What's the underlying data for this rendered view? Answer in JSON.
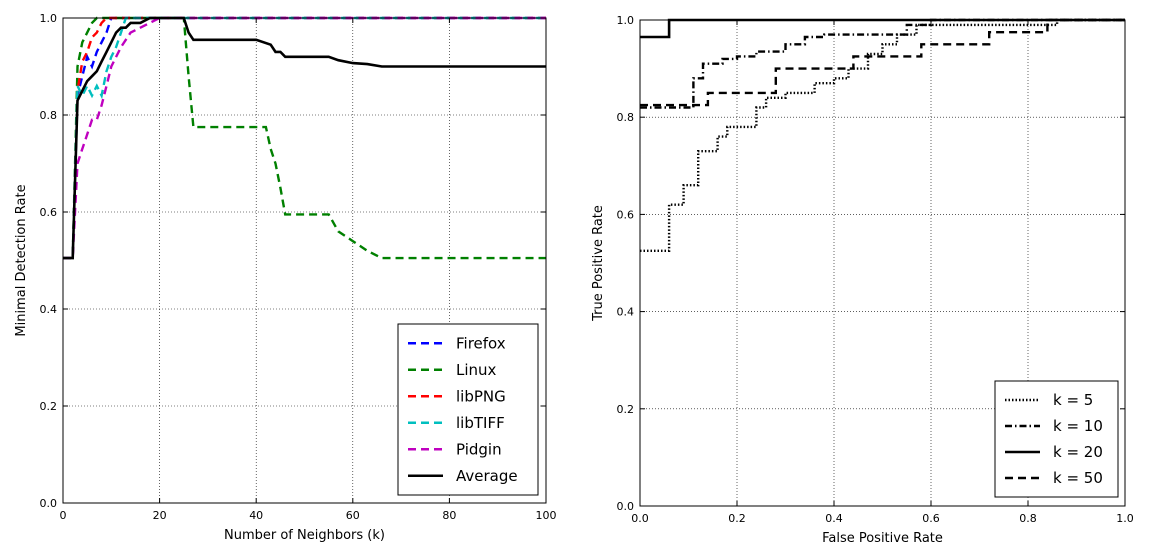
{
  "chart_data": [
    {
      "type": "line",
      "title": "",
      "xlabel": "Number of Neighbors (k)",
      "ylabel": "Minimal Detection Rate",
      "xlim": [
        0,
        100
      ],
      "ylim": [
        0.0,
        1.0
      ],
      "xticks": [
        "0",
        "20",
        "40",
        "60",
        "80",
        "100"
      ],
      "yticks": [
        "0.0",
        "0.2",
        "0.4",
        "0.6",
        "0.8",
        "1.0"
      ],
      "grid": true,
      "legend_position": "bottom-right",
      "series": [
        {
          "name": "Firefox",
          "color": "#0000ff",
          "dash": "dashed",
          "x": [
            0,
            2,
            3,
            4,
            5,
            6,
            7,
            8,
            9,
            10,
            100
          ],
          "y": [
            0.505,
            0.505,
            0.84,
            0.88,
            0.92,
            0.9,
            0.93,
            0.95,
            0.97,
            1.0,
            1.0
          ]
        },
        {
          "name": "Linux",
          "color": "#008000",
          "dash": "dashed",
          "x": [
            0,
            2,
            3,
            4,
            5,
            6,
            7,
            25,
            26,
            27,
            40,
            42,
            43,
            44,
            45,
            46,
            55,
            57,
            60,
            63,
            66,
            100
          ],
          "y": [
            0.505,
            0.505,
            0.9,
            0.95,
            0.97,
            0.99,
            1.0,
            1.0,
            0.88,
            0.775,
            0.775,
            0.775,
            0.73,
            0.7,
            0.65,
            0.595,
            0.595,
            0.56,
            0.54,
            0.52,
            0.505,
            0.505
          ]
        },
        {
          "name": "libPNG",
          "color": "#ff0000",
          "dash": "dashed",
          "x": [
            0,
            2,
            3,
            4,
            5,
            6,
            7,
            8,
            9,
            100
          ],
          "y": [
            0.505,
            0.505,
            0.85,
            0.91,
            0.93,
            0.96,
            0.97,
            0.99,
            1.0,
            1.0
          ]
        },
        {
          "name": "libTIFF",
          "color": "#00bfbf",
          "dash": "dashed",
          "x": [
            0,
            2,
            3,
            4,
            5,
            6,
            7,
            8,
            9,
            10,
            11,
            12,
            13,
            100
          ],
          "y": [
            0.505,
            0.505,
            0.86,
            0.84,
            0.86,
            0.84,
            0.86,
            0.84,
            0.89,
            0.92,
            0.94,
            0.97,
            1.0,
            1.0
          ]
        },
        {
          "name": "Pidgin",
          "color": "#bf00bf",
          "dash": "dashed",
          "x": [
            0,
            2,
            3,
            4,
            5,
            6,
            7,
            8,
            9,
            10,
            12,
            14,
            16,
            18,
            20,
            100
          ],
          "y": [
            0.505,
            0.505,
            0.7,
            0.73,
            0.76,
            0.79,
            0.79,
            0.82,
            0.86,
            0.9,
            0.94,
            0.97,
            0.98,
            0.99,
            1.0,
            1.0
          ]
        },
        {
          "name": "Average",
          "color": "#000000",
          "dash": "solid",
          "x": [
            0,
            2,
            3,
            4,
            5,
            6,
            7,
            8,
            9,
            10,
            11,
            12,
            13,
            14,
            16,
            18,
            20,
            25,
            26,
            27,
            40,
            43,
            44,
            45,
            46,
            55,
            57,
            60,
            63,
            66,
            100
          ],
          "y": [
            0.505,
            0.505,
            0.83,
            0.85,
            0.87,
            0.88,
            0.89,
            0.91,
            0.93,
            0.95,
            0.97,
            0.98,
            0.98,
            0.99,
            0.99,
            1.0,
            1.0,
            1.0,
            0.97,
            0.955,
            0.955,
            0.945,
            0.93,
            0.93,
            0.92,
            0.92,
            0.913,
            0.907,
            0.905,
            0.9,
            0.9
          ]
        }
      ]
    },
    {
      "type": "line",
      "title": "",
      "xlabel": "False Positive Rate",
      "ylabel": "True Positive Rate",
      "xlim": [
        0.0,
        1.0
      ],
      "ylim": [
        0.0,
        1.0
      ],
      "xticks": [
        "0.0",
        "0.2",
        "0.4",
        "0.6",
        "0.8",
        "1.0"
      ],
      "yticks": [
        "0.0",
        "0.2",
        "0.4",
        "0.6",
        "0.8",
        "1.0"
      ],
      "grid": true,
      "legend_position": "bottom-right",
      "series": [
        {
          "name": "k = 5",
          "color": "#000000",
          "dash": "dotted",
          "x": [
            0,
            0.06,
            0.06,
            0.09,
            0.09,
            0.12,
            0.12,
            0.16,
            0.16,
            0.18,
            0.18,
            0.24,
            0.24,
            0.26,
            0.26,
            0.3,
            0.3,
            0.36,
            0.36,
            0.4,
            0.4,
            0.43,
            0.43,
            0.47,
            0.47,
            0.5,
            0.5,
            0.53,
            0.53,
            0.57,
            0.57,
            0.66,
            0.66,
            0.86,
            0.86,
            1.0
          ],
          "y": [
            0.525,
            0.525,
            0.62,
            0.62,
            0.66,
            0.66,
            0.73,
            0.73,
            0.76,
            0.76,
            0.78,
            0.78,
            0.82,
            0.82,
            0.84,
            0.84,
            0.85,
            0.85,
            0.87,
            0.87,
            0.88,
            0.88,
            0.9,
            0.9,
            0.93,
            0.93,
            0.95,
            0.95,
            0.97,
            0.97,
            0.99,
            0.99,
            0.99,
            0.99,
            1.0,
            1.0
          ]
        },
        {
          "name": "k = 10",
          "color": "#000000",
          "dash": "dashdot",
          "x": [
            0,
            0.11,
            0.11,
            0.13,
            0.13,
            0.17,
            0.17,
            0.2,
            0.2,
            0.24,
            0.24,
            0.3,
            0.3,
            0.34,
            0.34,
            0.38,
            0.38,
            0.42,
            0.42,
            0.55,
            0.55,
            0.6,
            0.6,
            0.86,
            0.86,
            1.0
          ],
          "y": [
            0.82,
            0.82,
            0.88,
            0.88,
            0.91,
            0.91,
            0.92,
            0.92,
            0.925,
            0.925,
            0.935,
            0.935,
            0.95,
            0.95,
            0.965,
            0.965,
            0.97,
            0.97,
            0.97,
            0.97,
            0.99,
            0.99,
            1.0,
            1.0,
            1.0,
            1.0
          ]
        },
        {
          "name": "k = 20",
          "color": "#000000",
          "dash": "solid",
          "x": [
            0,
            0.06,
            0.06,
            1.0
          ],
          "y": [
            0.965,
            0.965,
            1.0,
            1.0
          ]
        },
        {
          "name": "k = 50",
          "color": "#000000",
          "dash": "dashed",
          "x": [
            0,
            0.14,
            0.14,
            0.28,
            0.28,
            0.44,
            0.44,
            0.58,
            0.58,
            0.72,
            0.72,
            0.84,
            0.84,
            1.0
          ],
          "y": [
            0.825,
            0.825,
            0.85,
            0.85,
            0.9,
            0.9,
            0.925,
            0.925,
            0.95,
            0.95,
            0.975,
            0.975,
            1.0,
            1.0
          ]
        }
      ]
    }
  ]
}
